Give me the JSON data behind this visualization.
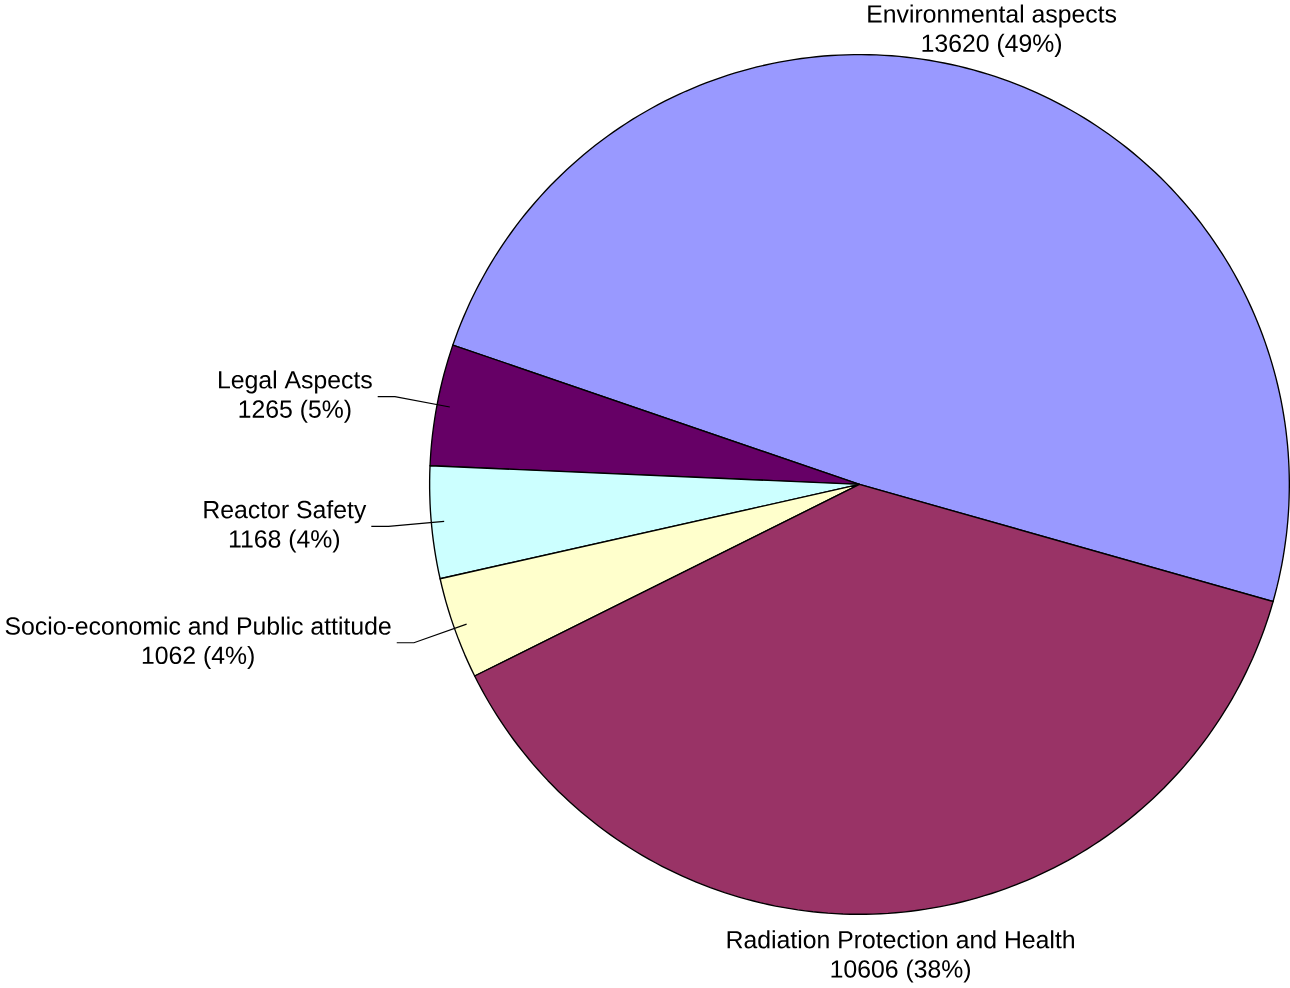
{
  "chart_data": {
    "type": "pie",
    "categories": [
      "Environmental aspects",
      "Legal Aspects",
      "Reactor Safety",
      "Socio-economic and Public attitude",
      "Radiation Protection and Health"
    ],
    "values": [
      13620,
      1265,
      1168,
      1062,
      10606
    ],
    "colors": [
      "#9999ff",
      "#660066",
      "#ccffff",
      "#ffffcc",
      "#993366"
    ],
    "value_labels": [
      "13620 (49%)",
      "1265 (5%)",
      "1168 (4%)",
      "1062 (4%)",
      "10606 (38%)"
    ]
  }
}
